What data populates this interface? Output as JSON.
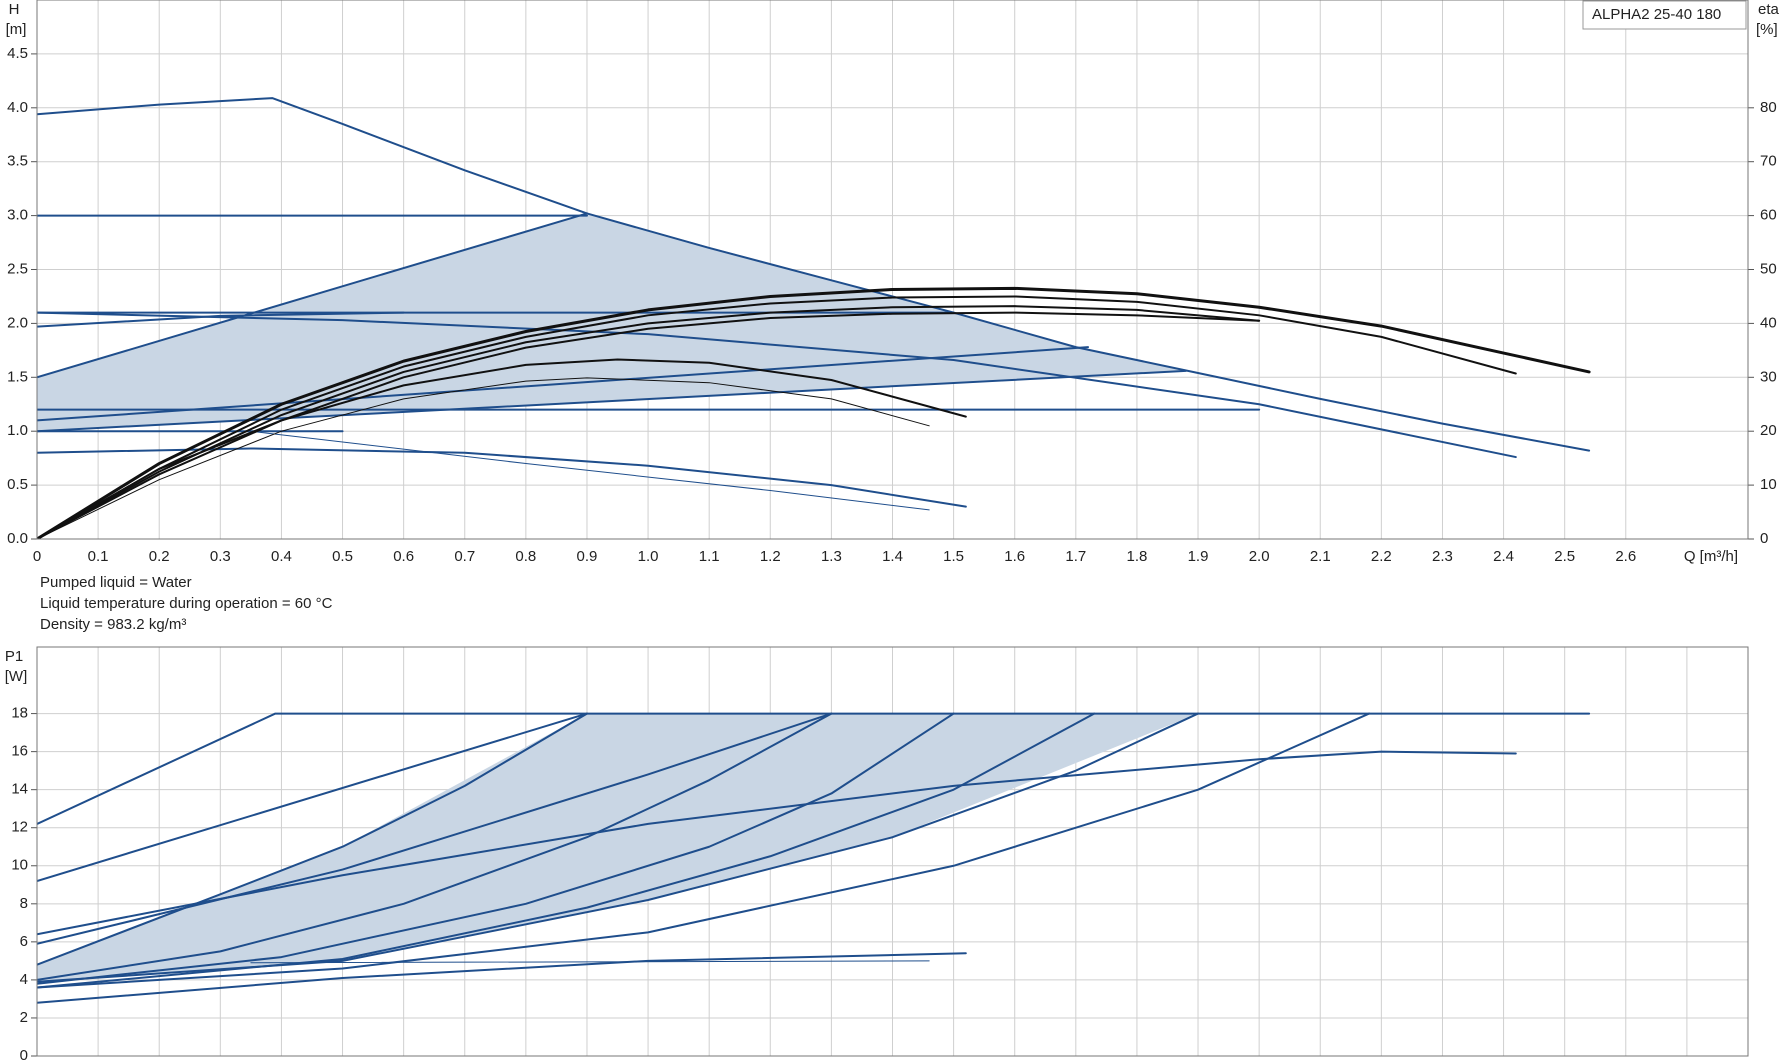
{
  "chart_data": [
    {
      "type": "line",
      "model": "ALPHA2 25-40 180",
      "ylabel": "H",
      "yunit": "[m]",
      "y2label": "eta",
      "y2unit": "[%]",
      "xlabel": "Q [m³/h]",
      "notes": [
        "Pumped liquid = Water",
        "Liquid temperature during operation = 60 °C",
        "Density = 983.2 kg/m³"
      ],
      "grid": true,
      "xlim": [
        0,
        2.8
      ],
      "xticks": [
        0,
        0.1,
        0.2,
        0.3,
        0.4,
        0.5,
        0.6,
        0.7,
        0.8,
        0.9,
        {
          "value": 1,
          "label": "1.0"
        },
        1.1,
        1.2,
        1.3,
        1.4,
        1.5,
        1.6,
        1.7,
        1.8,
        1.9,
        {
          "value": 2,
          "label": "2.0"
        },
        2.1,
        2.2,
        2.3,
        2.4,
        2.5,
        2.6
      ],
      "ylim": [
        0,
        5
      ],
      "yticks": [
        {
          "value": 0,
          "label": "0.0"
        },
        0.5,
        {
          "value": 1,
          "label": "1.0"
        },
        1.5,
        {
          "value": 2,
          "label": "2.0"
        },
        2.5,
        {
          "value": 3,
          "label": "3.0"
        },
        3.5,
        {
          "value": 4,
          "label": "4.0"
        },
        4.5
      ],
      "y2lim": [
        0,
        100
      ],
      "y2ticks": [
        0,
        10,
        20,
        30,
        40,
        50,
        60,
        70,
        80
      ],
      "shaded_region": {
        "color": "#c9d6e4",
        "x": [
          0,
          0,
          0.9,
          1.3,
          1.7,
          1.88
        ],
        "values": [
          1.0,
          1.5,
          3.02,
          2.4,
          1.78,
          1.56
        ]
      },
      "series": [
        {
          "color": "#1f4e8c",
          "width": 2,
          "x": [
            0,
            0.2,
            0.385,
            0.5,
            0.7,
            0.9,
            1.1,
            1.3,
            1.5,
            1.7,
            1.9,
            2.1,
            2.3,
            2.54
          ],
          "values": [
            3.94,
            4.03,
            4.09,
            3.85,
            3.42,
            3.02,
            2.7,
            2.4,
            2.1,
            1.78,
            1.54,
            1.3,
            1.07,
            0.82
          ]
        },
        {
          "color": "#1f4e8c",
          "width": 2,
          "x": [
            0,
            0.9
          ],
          "values": [
            3.0,
            3.0
          ]
        },
        {
          "color": "#1f4e8c",
          "width": 2,
          "x": [
            0,
            0.9
          ],
          "values": [
            1.5,
            3.02
          ]
        },
        {
          "color": "#1f4e8c",
          "width": 2,
          "x": [
            0,
            1.5
          ],
          "values": [
            2.1,
            2.1
          ]
        },
        {
          "color": "#1f4e8c",
          "width": 2,
          "x": [
            0,
            0.5,
            1.0,
            1.5,
            2.0,
            2.42
          ],
          "values": [
            2.1,
            2.03,
            1.9,
            1.66,
            1.25,
            0.76
          ]
        },
        {
          "color": "#1f4e8c",
          "width": 2,
          "x": [
            0,
            0.3,
            0.6
          ],
          "values": [
            1.97,
            2.07,
            2.1
          ]
        },
        {
          "color": "#1f4e8c",
          "width": 2,
          "x": [
            0,
            1.72
          ],
          "values": [
            1.1,
            1.78
          ]
        },
        {
          "color": "#1f4e8c",
          "width": 2,
          "x": [
            0,
            1.88
          ],
          "values": [
            1.0,
            1.56
          ]
        },
        {
          "color": "#1f4e8c",
          "width": 2,
          "x": [
            0,
            2.0
          ],
          "values": [
            1.2,
            1.2
          ]
        },
        {
          "color": "#1f4e8c",
          "width": 2,
          "x": [
            0,
            0.5
          ],
          "values": [
            1.0,
            1.0
          ]
        },
        {
          "color": "#1f4e8c",
          "width": 2,
          "x": [
            0,
            0.35,
            0.7,
            1.0,
            1.3,
            1.52
          ],
          "values": [
            0.8,
            0.84,
            0.8,
            0.68,
            0.5,
            0.3
          ]
        },
        {
          "color": "#1f4e8c",
          "width": 1,
          "x": [
            0.35,
            0.8,
            1.2,
            1.46
          ],
          "values": [
            1.0,
            0.7,
            0.45,
            0.27
          ]
        },
        {
          "color": "#111111",
          "width": 3,
          "axis": "y2",
          "x": [
            0,
            0.2,
            0.4,
            0.6,
            0.8,
            1.0,
            1.2,
            1.4,
            1.6,
            1.8,
            2.0,
            2.2,
            2.4,
            2.54
          ],
          "values": [
            0,
            14,
            25,
            33,
            38.5,
            42.5,
            45,
            46.3,
            46.5,
            45.5,
            43,
            39.5,
            34.5,
            31
          ]
        },
        {
          "color": "#111111",
          "width": 2,
          "axis": "y2",
          "x": [
            0,
            0.2,
            0.4,
            0.6,
            0.8,
            1.0,
            1.2,
            1.4,
            1.6,
            1.8,
            2.0,
            2.2,
            2.42
          ],
          "values": [
            0,
            13,
            24,
            32,
            37.5,
            41.5,
            43.7,
            44.8,
            45,
            44,
            41.5,
            37.5,
            30.7
          ]
        },
        {
          "color": "#111111",
          "width": 2,
          "axis": "y2",
          "x": [
            0,
            0.2,
            0.4,
            0.6,
            0.8,
            1.0,
            1.2,
            1.4,
            1.6,
            1.8,
            2.0
          ],
          "values": [
            0,
            12.5,
            23,
            31,
            36.5,
            40,
            42,
            43,
            43.2,
            42.5,
            40.5
          ]
        },
        {
          "color": "#111111",
          "width": 2,
          "axis": "y2",
          "x": [
            0,
            0.2,
            0.4,
            0.6,
            0.8,
            1.0,
            1.2,
            1.4,
            1.6,
            1.8,
            2.0
          ],
          "values": [
            0,
            12,
            22,
            30,
            35.5,
            39,
            41,
            41.8,
            42,
            41.5,
            40.5
          ]
        },
        {
          "color": "#111111",
          "width": 2,
          "axis": "y2",
          "x": [
            0,
            0.2,
            0.4,
            0.6,
            0.8,
            0.95,
            1.1,
            1.3,
            1.52
          ],
          "values": [
            0,
            13,
            22,
            28.5,
            32.3,
            33.3,
            32.7,
            29.5,
            22.7
          ]
        },
        {
          "color": "#111111",
          "width": 1,
          "axis": "y2",
          "x": [
            0,
            0.2,
            0.4,
            0.6,
            0.8,
            0.9,
            1.1,
            1.3,
            1.46
          ],
          "values": [
            0,
            11,
            20,
            26,
            29.3,
            29.9,
            29,
            26,
            21
          ]
        }
      ]
    },
    {
      "type": "line",
      "ylabel": "P1",
      "yunit": "[W]",
      "grid": true,
      "show_xtick_labels": false,
      "xlim": [
        0,
        2.8
      ],
      "xticks": [
        0,
        0.1,
        0.2,
        0.3,
        0.4,
        0.5,
        0.6,
        0.7,
        0.8,
        0.9,
        1,
        1.1,
        1.2,
        1.3,
        1.4,
        1.5,
        1.6,
        1.7,
        1.8,
        1.9,
        2,
        2.1,
        2.2,
        2.3,
        2.4,
        2.5,
        2.6,
        2.7
      ],
      "ylim": [
        0,
        21.5
      ],
      "yticks": [
        0,
        2,
        4,
        6,
        8,
        10,
        12,
        14,
        16,
        18
      ],
      "shaded_region": {
        "color": "#c9d6e4",
        "x": [
          0,
          0,
          0.5,
          0.9,
          1.9,
          1.4,
          1.0,
          0.5
        ],
        "values": [
          3.9,
          4.8,
          11,
          18,
          18,
          11.5,
          8.2,
          5.0
        ]
      },
      "series": [
        {
          "color": "#1f4e8c",
          "width": 2,
          "x": [
            0,
            0.39,
            2.54
          ],
          "values": [
            12.2,
            18,
            18
          ]
        },
        {
          "color": "#1f4e8c",
          "width": 2,
          "x": [
            0,
            0.9
          ],
          "values": [
            9.2,
            18
          ]
        },
        {
          "color": "#1f4e8c",
          "width": 2,
          "x": [
            0,
            0.3,
            0.5,
            0.7,
            0.9
          ],
          "values": [
            4.8,
            8.5,
            11,
            14.2,
            18
          ]
        },
        {
          "color": "#1f4e8c",
          "width": 2,
          "x": [
            0,
            0.3,
            0.6,
            0.9,
            1.1,
            1.3
          ],
          "values": [
            4.0,
            5.5,
            8,
            11.5,
            14.5,
            18
          ]
        },
        {
          "color": "#1f4e8c",
          "width": 2,
          "x": [
            0,
            0.4,
            0.8,
            1.1,
            1.3,
            1.5
          ],
          "values": [
            3.8,
            5.2,
            8,
            11,
            13.8,
            18
          ]
        },
        {
          "color": "#1f4e8c",
          "width": 2,
          "x": [
            0,
            0.5,
            0.9,
            1.2,
            1.5,
            1.73
          ],
          "values": [
            3.6,
            5.1,
            7.8,
            10.5,
            14,
            18
          ]
        },
        {
          "color": "#1f4e8c",
          "width": 2,
          "x": [
            0,
            0.5,
            1.0,
            1.4,
            1.7,
            1.9
          ],
          "values": [
            3.9,
            5.0,
            8.2,
            11.5,
            15,
            18
          ]
        },
        {
          "color": "#1f4e8c",
          "width": 2,
          "x": [
            0,
            0.5,
            1.0,
            1.5,
            1.9,
            2.18
          ],
          "values": [
            3.6,
            4.6,
            6.5,
            10,
            14,
            18
          ]
        },
        {
          "color": "#1f4e8c",
          "width": 2,
          "x": [
            0,
            0.5,
            1.0,
            1.5,
            2.0,
            2.2,
            2.42
          ],
          "values": [
            6.4,
            9.5,
            12.2,
            14.2,
            15.6,
            16,
            15.9
          ]
        },
        {
          "color": "#1f4e8c",
          "width": 2,
          "x": [
            0,
            0.5,
            1.0,
            1.3
          ],
          "values": [
            5.9,
            9.8,
            14.8,
            18
          ]
        },
        {
          "color": "#1f4e8c",
          "width": 2,
          "x": [
            0,
            0.5,
            1.0,
            1.52
          ],
          "values": [
            2.8,
            4.1,
            5.0,
            5.4
          ]
        },
        {
          "color": "#1f4e8c",
          "width": 1,
          "x": [
            0.35,
            1.46
          ],
          "values": [
            4.9,
            5.0
          ]
        }
      ]
    }
  ]
}
